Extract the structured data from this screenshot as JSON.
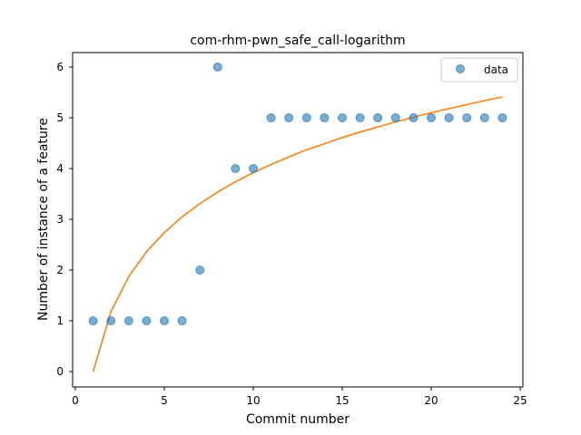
{
  "chart_data": {
    "type": "scatter",
    "title": "com-rhm-pwn_safe_call-logarithm",
    "xlabel": "Commit number",
    "ylabel": "Number of instance of a feature",
    "xlim": [
      0,
      25
    ],
    "ylim": [
      0,
      6
    ],
    "xticks": [
      "0",
      "5",
      "10",
      "15",
      "20",
      "25"
    ],
    "yticks": [
      "0",
      "1",
      "2",
      "3",
      "4",
      "5",
      "6"
    ],
    "grid": false,
    "legend": {
      "placement": "top-right",
      "entries": [
        "data"
      ]
    },
    "series": [
      {
        "name": "data",
        "kind": "scatter",
        "color": "#1f77b4",
        "x": [
          1,
          2,
          3,
          4,
          5,
          6,
          7,
          8,
          9,
          10,
          11,
          12,
          13,
          14,
          15,
          16,
          17,
          18,
          19,
          20,
          21,
          22,
          23,
          24
        ],
        "y": [
          1,
          1,
          1,
          1,
          1,
          1,
          2,
          6,
          4,
          4,
          5,
          5,
          5,
          5,
          5,
          5,
          5,
          5,
          5,
          5,
          5,
          5,
          5,
          5
        ]
      },
      {
        "kind": "line",
        "color": "#ff7f0e",
        "x": [
          1,
          2,
          3,
          4,
          5,
          6,
          7,
          8,
          9,
          10,
          11,
          12,
          13,
          14,
          15,
          16,
          17,
          18,
          19,
          20,
          21,
          22,
          23,
          24
        ],
        "y": [
          0,
          1.18,
          1.87,
          2.36,
          2.74,
          3.05,
          3.31,
          3.54,
          3.74,
          3.92,
          4.08,
          4.23,
          4.37,
          4.49,
          4.61,
          4.72,
          4.82,
          4.92,
          5.01,
          5.1,
          5.18,
          5.26,
          5.34,
          5.41
        ]
      }
    ]
  }
}
